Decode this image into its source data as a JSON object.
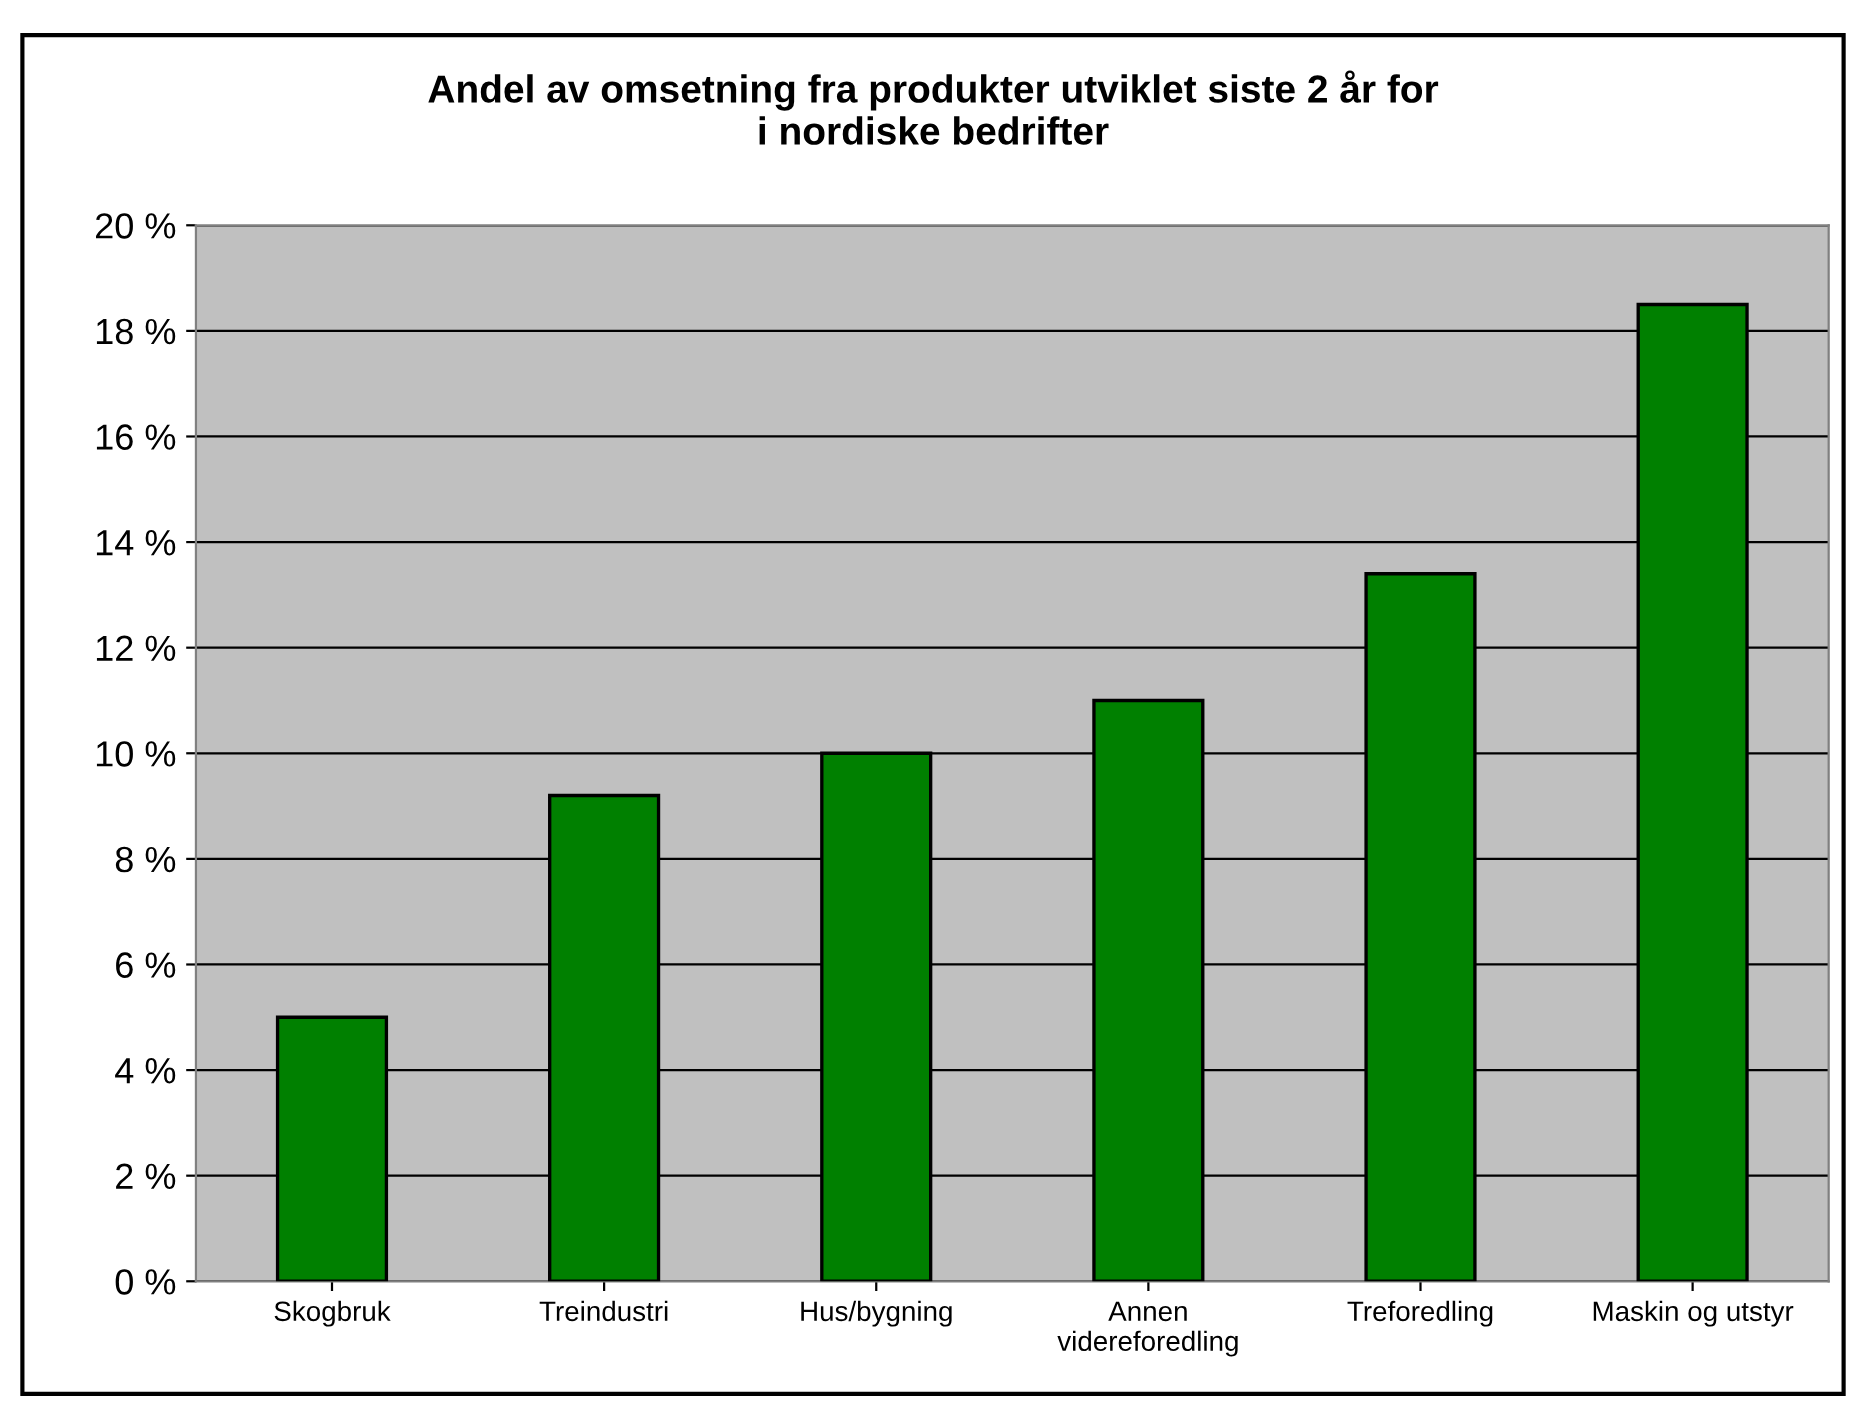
{
  "chart_data": {
    "type": "bar",
    "title": "Andel av omsetning fra produkter utviklet siste 2 år for\ni nordiske bedrifter",
    "categories": [
      "Skogbruk",
      "Treindustri",
      "Hus/bygning",
      "Annen\nvidereforedling",
      "Treforedling",
      "Maskin og utstyr"
    ],
    "values": [
      5.0,
      9.2,
      10.0,
      11.0,
      13.4,
      18.5
    ],
    "color": "#008000",
    "ylim": [
      0,
      20
    ],
    "yticks": [
      {
        "value": 0,
        "label": "0 %"
      },
      {
        "value": 2,
        "label": "2 %"
      },
      {
        "value": 4,
        "label": "4 %"
      },
      {
        "value": 6,
        "label": "6 %"
      },
      {
        "value": 8,
        "label": "8 %"
      },
      {
        "value": 10,
        "label": "10 %"
      },
      {
        "value": 12,
        "label": "12 %"
      },
      {
        "value": 14,
        "label": "14 %"
      },
      {
        "value": 16,
        "label": "16 %"
      },
      {
        "value": 18,
        "label": "18 %"
      },
      {
        "value": 20,
        "label": "20 %"
      }
    ],
    "grid": "y",
    "legend": false
  }
}
